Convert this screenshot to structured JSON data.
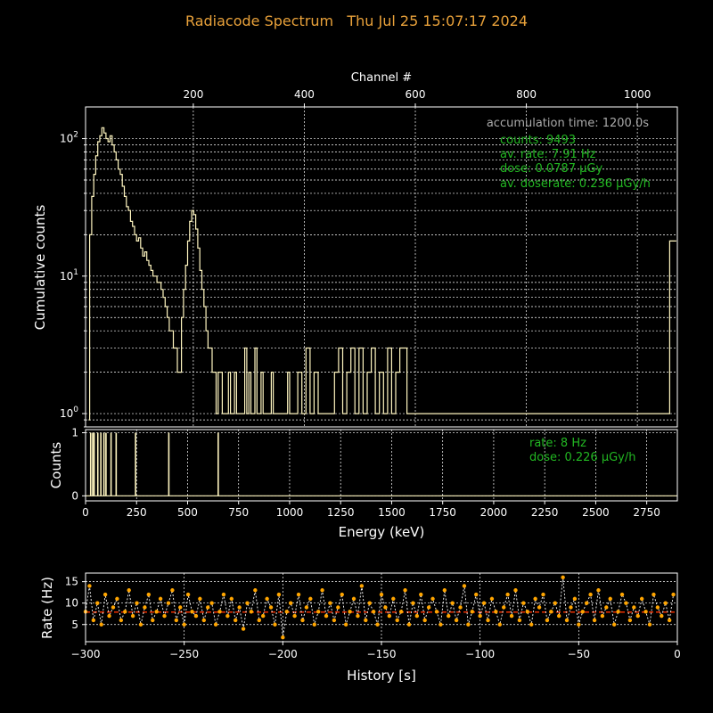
{
  "title": "Radiacode Spectrum   Thu Jul 25 15:07:17 2024",
  "colors": {
    "background": "#000000",
    "title": "#e8a13a",
    "text": "#ffffff",
    "spectrum": "#fff6c0",
    "stats_green": "#22b722",
    "stats_gray": "#aaaaaa",
    "rate_points": "#ffa500",
    "rate_mean": "#ff3300",
    "grid": "#ffffff"
  },
  "chart_data": [
    {
      "id": "spectrum_cumulative",
      "type": "line",
      "drawstyle": "steps",
      "ylabel": "Cumulative counts",
      "top_xlabel": "Channel #",
      "top_xticks": [
        "200",
        "400",
        "600",
        "800",
        "1000"
      ],
      "yscale": "log",
      "ylim": [
        0.8,
        170
      ],
      "xlim": [
        0,
        2900
      ],
      "yticks": [
        "10^0",
        "10^1",
        "10^2"
      ],
      "grid": true,
      "annotations": {
        "accumulation": "accumulation time: 1200.0s",
        "counts": "counts: 9493",
        "av_rate": "av. rate: 7.91 Hz",
        "dose": "dose: 0.0787 µGy",
        "av_doserate": "av. doserate: 0.236 µGy/h"
      },
      "series": [
        {
          "x": [
            15,
            25,
            35,
            45,
            55,
            65,
            75,
            85,
            95,
            105,
            115,
            125,
            135,
            145,
            155,
            165,
            175,
            185,
            195,
            205,
            215,
            225,
            235,
            245,
            255,
            265,
            275,
            285,
            295,
            305,
            315,
            325,
            335,
            345,
            355,
            365,
            375,
            385,
            395,
            405,
            415,
            425,
            435,
            445,
            455,
            465,
            475,
            485,
            495,
            505,
            515,
            525,
            535,
            545,
            555,
            565,
            575,
            585,
            595,
            605,
            615,
            625,
            635,
            645,
            655,
            665,
            675,
            685,
            695,
            705,
            715,
            725,
            735,
            745,
            755,
            765,
            775,
            785,
            795,
            805,
            815,
            825,
            835,
            845,
            855,
            865,
            875,
            885,
            895,
            905,
            915,
            925,
            935,
            945,
            955,
            965,
            975,
            985,
            995,
            1005,
            1015,
            1030,
            1050,
            1070,
            1090,
            1110,
            1130,
            1150,
            1170,
            1190,
            1210,
            1230,
            1250,
            1270,
            1290,
            1310,
            1330,
            1350,
            1370,
            1390,
            1410,
            1430,
            1450,
            1470,
            1490,
            1510,
            1530,
            1550,
            1600,
            1680,
            1730,
            1790,
            1900,
            2060,
            2250,
            2350,
            2470,
            2650,
            2830,
            2895
          ],
          "values": [
            0.9,
            20,
            38,
            55,
            75,
            95,
            105,
            120,
            110,
            100,
            95,
            105,
            90,
            80,
            70,
            60,
            55,
            45,
            38,
            32,
            30,
            25,
            23,
            20,
            18,
            19,
            16,
            14,
            15,
            13,
            12,
            11,
            10,
            10,
            9,
            9,
            8,
            7,
            6,
            5,
            4,
            4,
            3,
            3,
            2,
            2,
            5,
            8,
            12,
            18,
            25,
            30,
            28,
            22,
            16,
            11,
            8,
            6,
            4,
            3,
            3,
            2,
            2,
            1,
            2,
            2,
            1,
            1,
            1,
            2,
            1,
            1,
            2,
            1,
            1,
            1,
            1,
            3,
            1,
            2,
            1,
            1,
            3,
            1,
            1,
            2,
            1,
            1,
            1,
            1,
            2,
            1,
            1,
            1,
            1,
            1,
            1,
            1,
            2,
            1,
            1,
            1,
            2,
            1,
            3,
            1,
            2,
            1,
            1,
            1,
            1,
            2,
            3,
            1,
            2,
            3,
            1,
            3,
            1,
            2,
            3,
            1,
            2,
            1,
            3,
            1,
            2,
            3,
            1,
            1,
            1,
            1,
            1,
            1,
            1,
            1,
            1,
            1,
            1,
            18
          ]
        }
      ]
    },
    {
      "id": "spectrum_last",
      "type": "bar",
      "ylabel": "Counts",
      "xlabel": "Energy (keV)",
      "xlim": [
        0,
        2900
      ],
      "ylim": [
        -0.08,
        1.05
      ],
      "xticks": [
        "0",
        "250",
        "500",
        "750",
        "1000",
        "1250",
        "1500",
        "1750",
        "2000",
        "2250",
        "2500",
        "2750"
      ],
      "yticks": [
        "0",
        "1"
      ],
      "grid": true,
      "annotations": {
        "rate": "rate: 8 Hz",
        "dose": "dose: 0.226 µGy/h"
      },
      "series": [
        {
          "x": [
            25,
            35,
            42,
            60,
            75,
            90,
            100,
            125,
            150,
            245,
            408,
            650
          ],
          "values": [
            1,
            1,
            1,
            1,
            1,
            1,
            1,
            1,
            1,
            1,
            1,
            1
          ]
        }
      ]
    },
    {
      "id": "rate_history",
      "type": "line",
      "ylabel": "Rate (Hz)",
      "xlabel": "History [s]",
      "xlim": [
        -300,
        0
      ],
      "ylim": [
        1,
        17
      ],
      "xticks": [
        "−300",
        "−250",
        "−200",
        "−150",
        "−100",
        "−50",
        "0"
      ],
      "yticks": [
        "5",
        "10",
        "15"
      ],
      "grid": true,
      "series": [
        {
          "name": "rate",
          "x": [
            -300,
            -298,
            -296,
            -294,
            -292,
            -290,
            -288,
            -286,
            -284,
            -282,
            -280,
            -278,
            -276,
            -274,
            -272,
            -270,
            -268,
            -266,
            -264,
            -262,
            -260,
            -258,
            -256,
            -254,
            -252,
            -250,
            -248,
            -246,
            -244,
            -242,
            -240,
            -238,
            -236,
            -234,
            -232,
            -230,
            -228,
            -226,
            -224,
            -222,
            -220,
            -218,
            -216,
            -214,
            -212,
            -210,
            -208,
            -206,
            -204,
            -202,
            -200,
            -198,
            -196,
            -194,
            -192,
            -190,
            -188,
            -186,
            -184,
            -182,
            -180,
            -178,
            -176,
            -174,
            -172,
            -170,
            -168,
            -166,
            -164,
            -162,
            -160,
            -158,
            -156,
            -154,
            -152,
            -150,
            -148,
            -146,
            -144,
            -142,
            -140,
            -138,
            -136,
            -134,
            -132,
            -130,
            -128,
            -126,
            -124,
            -122,
            -120,
            -118,
            -116,
            -114,
            -112,
            -110,
            -108,
            -106,
            -104,
            -102,
            -100,
            -98,
            -96,
            -94,
            -92,
            -90,
            -88,
            -86,
            -84,
            -82,
            -80,
            -78,
            -76,
            -74,
            -72,
            -70,
            -68,
            -66,
            -64,
            -62,
            -60,
            -58,
            -56,
            -54,
            -52,
            -50,
            -48,
            -46,
            -44,
            -42,
            -40,
            -38,
            -36,
            -34,
            -32,
            -30,
            -28,
            -26,
            -24,
            -22,
            -20,
            -18,
            -16,
            -14,
            -12,
            -10,
            -8,
            -6,
            -4,
            -2
          ],
          "values": [
            8,
            14,
            6,
            10,
            5,
            12,
            7,
            9,
            11,
            6,
            8,
            13,
            7,
            10,
            5,
            9,
            12,
            6,
            8,
            11,
            7,
            10,
            13,
            6,
            9,
            5,
            12,
            8,
            7,
            11,
            6,
            9,
            10,
            5,
            8,
            12,
            7,
            11,
            6,
            9,
            4,
            10,
            8,
            13,
            6,
            7,
            11,
            9,
            5,
            12,
            2,
            8,
            10,
            7,
            12,
            6,
            9,
            11,
            5,
            8,
            13,
            7,
            10,
            6,
            9,
            12,
            5,
            8,
            11,
            7,
            14,
            6,
            10,
            8,
            5,
            12,
            9,
            7,
            11,
            6,
            8,
            13,
            5,
            10,
            7,
            12,
            6,
            9,
            11,
            8,
            5,
            13,
            7,
            10,
            6,
            9,
            14,
            5,
            8,
            12,
            7,
            10,
            6,
            11,
            8,
            5,
            9,
            12,
            7,
            13,
            6,
            10,
            8,
            5,
            11,
            9,
            12,
            6,
            8,
            10,
            7,
            16,
            6,
            9,
            11,
            5,
            8,
            10,
            12,
            6,
            13,
            7,
            9,
            11,
            5,
            8,
            12,
            10,
            6,
            9,
            7,
            11,
            8,
            5,
            12,
            9,
            7,
            10,
            6,
            12
          ]
        },
        {
          "name": "mean",
          "x": [
            -300,
            -200,
            -100,
            -1
          ],
          "values": [
            7.9,
            7.9,
            7.9,
            7.9
          ]
        }
      ]
    }
  ]
}
